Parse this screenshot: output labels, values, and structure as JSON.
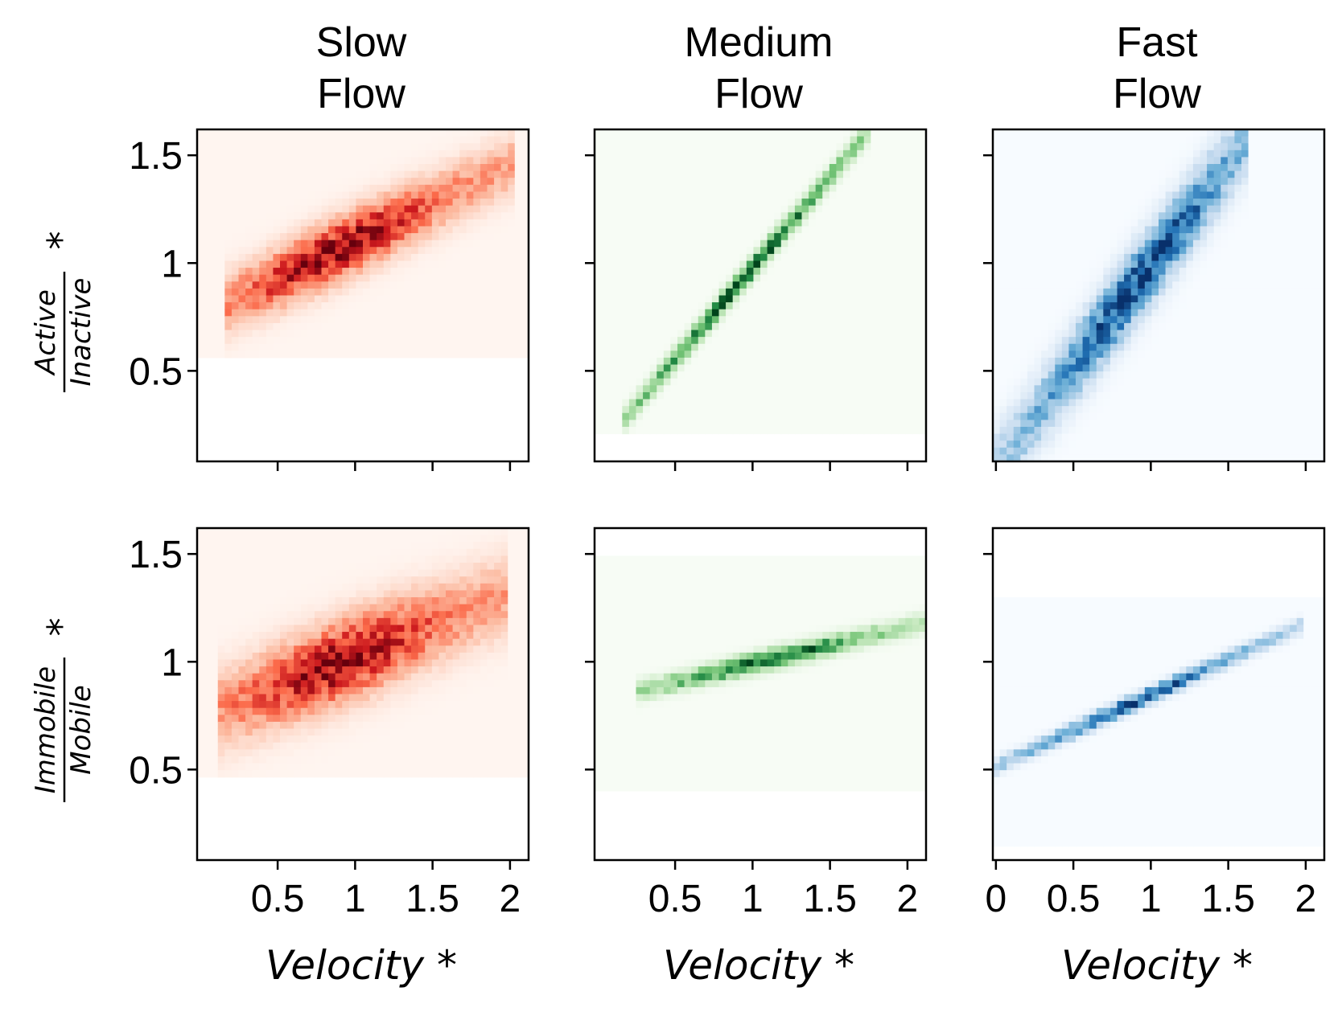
{
  "columns": [
    {
      "title_line1": "Slow",
      "title_line2": "Flow"
    },
    {
      "title_line1": "Medium",
      "title_line2": "Flow"
    },
    {
      "title_line1": "Fast",
      "title_line2": "Flow"
    }
  ],
  "rows": [
    {
      "ylabel_numerator": "Active",
      "ylabel_denominator": "Inactive",
      "ylabel_suffix": "*"
    },
    {
      "ylabel_numerator": "Immobile",
      "ylabel_denominator": "Mobile",
      "ylabel_suffix": "*"
    }
  ],
  "xlabel": "Velocity *",
  "x_ticks": [
    0,
    0.5,
    1,
    1.5,
    2
  ],
  "x_tick_labels": [
    "0",
    "0.5",
    "1",
    "1.5",
    "2"
  ],
  "y_ticks": [
    0.5,
    1,
    1.5
  ],
  "y_tick_labels": [
    "0.5",
    "1",
    "1.5"
  ],
  "colors": {
    "slow": "#b2182b",
    "medium": "#00441b",
    "fast": "#08306b"
  },
  "chart_data": [
    {
      "type": "heatmap",
      "row": 0,
      "col": 0,
      "colormap": "Reds",
      "xlim": [
        -0.02,
        2.12
      ],
      "ylim": [
        0.08,
        1.62
      ],
      "coverage": {
        "x": [
          -0.02,
          2.12
        ],
        "y": [
          0.55,
          1.62
        ]
      },
      "trend": {
        "x0": 0.2,
        "y0": 0.82,
        "x1": 2.0,
        "y1": 1.45,
        "spread": 0.09,
        "peak_x": 0.9
      }
    },
    {
      "type": "heatmap",
      "row": 0,
      "col": 1,
      "colormap": "Greens",
      "xlim": [
        -0.02,
        2.12
      ],
      "ylim": [
        0.08,
        1.62
      ],
      "coverage": {
        "x": [
          -0.02,
          2.12
        ],
        "y": [
          0.22,
          1.62
        ]
      },
      "trend": {
        "x0": 0.2,
        "y0": 0.3,
        "x1": 1.7,
        "y1": 1.57,
        "spread": 0.035,
        "peak_x": 0.95
      }
    },
    {
      "type": "heatmap",
      "row": 0,
      "col": 2,
      "colormap": "Blues",
      "xlim": [
        -0.02,
        2.12
      ],
      "ylim": [
        0.08,
        1.62
      ],
      "coverage": {
        "x": [
          -0.02,
          2.12
        ],
        "y": [
          0.08,
          1.62
        ]
      },
      "trend": {
        "x0": 0.05,
        "y0": 0.1,
        "x1": 1.6,
        "y1": 1.55,
        "spread": 0.11,
        "peak_x": 0.92
      }
    },
    {
      "type": "heatmap",
      "row": 1,
      "col": 0,
      "colormap": "Reds",
      "xlim": [
        -0.02,
        2.12
      ],
      "ylim": [
        0.08,
        1.62
      ],
      "coverage": {
        "x": [
          -0.02,
          2.12
        ],
        "y": [
          0.48,
          1.62
        ]
      },
      "trend": {
        "x0": 0.15,
        "y0": 0.78,
        "x1": 1.95,
        "y1": 1.3,
        "spread": 0.12,
        "peak_x": 0.92
      }
    },
    {
      "type": "heatmap",
      "row": 1,
      "col": 1,
      "colormap": "Greens",
      "xlim": [
        -0.02,
        2.12
      ],
      "ylim": [
        0.08,
        1.62
      ],
      "coverage": {
        "x": [
          -0.02,
          2.12
        ],
        "y": [
          0.41,
          1.49
        ]
      },
      "trend": {
        "x0": 0.3,
        "y0": 0.87,
        "x1": 2.05,
        "y1": 1.17,
        "spread": 0.03,
        "peak_x": 1.1
      }
    },
    {
      "type": "heatmap",
      "row": 1,
      "col": 2,
      "colormap": "Blues",
      "xlim": [
        -0.02,
        2.12
      ],
      "ylim": [
        0.08,
        1.62
      ],
      "coverage": {
        "x": [
          -0.02,
          2.12
        ],
        "y": [
          0.15,
          1.31
        ]
      },
      "trend": {
        "x0": 0.05,
        "y0": 0.53,
        "x1": 1.95,
        "y1": 1.16,
        "spread": 0.025,
        "peak_x": 0.9
      }
    }
  ]
}
